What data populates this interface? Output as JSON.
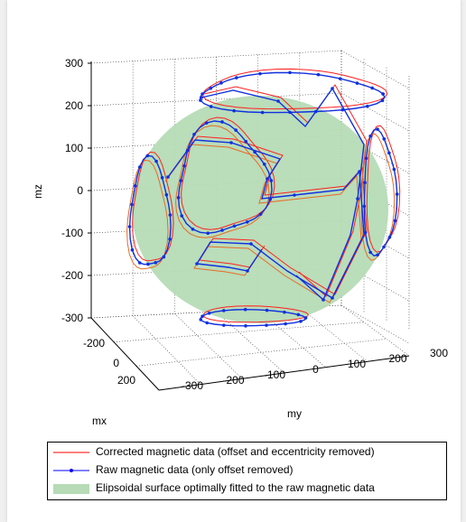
{
  "chart_data": {
    "type": "scatter3d",
    "xlabel": "mx",
    "ylabel": "my",
    "zlabel": "mz",
    "xlim": [
      -300,
      300
    ],
    "ylim": [
      -300,
      300
    ],
    "zlim": [
      -300,
      300
    ],
    "x_ticks": [
      "-200",
      "0",
      "200"
    ],
    "y_ticks": [
      "-300",
      "-200",
      "-100",
      "0",
      "100",
      "200",
      "300"
    ],
    "z_ticks": [
      "300",
      "200",
      "100",
      "0",
      "-100",
      "-200",
      "-300"
    ],
    "grid": true,
    "legend_position": "bottom",
    "series": [
      {
        "name": "Corrected magnetic data (offset and eccentricity removed)",
        "style": "red-line",
        "color": "#ff0000"
      },
      {
        "name": "Raw magnetic data (only offset removed)",
        "style": "blue-line-markers",
        "color": "#0000ff"
      },
      {
        "name": "Elipsoidal surface optimally fitted to the raw magnetic data",
        "style": "green-surface",
        "color": "#b6dbb6"
      }
    ],
    "ellipsoid_radius": 300
  }
}
